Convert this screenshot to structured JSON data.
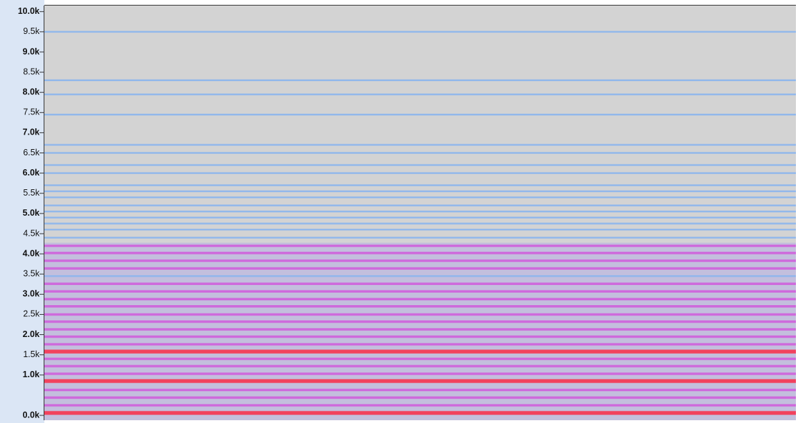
{
  "chart_data": {
    "type": "spectrogram",
    "ylim": [
      -120,
      10150
    ],
    "yticks": [
      {
        "value": 0,
        "label": "0.0k"
      },
      {
        "value": 1000,
        "label": "1.0k"
      },
      {
        "value": 1500,
        "label": "1.5k"
      },
      {
        "value": 2000,
        "label": "2.0k"
      },
      {
        "value": 2500,
        "label": "2.5k"
      },
      {
        "value": 3000,
        "label": "3.0k"
      },
      {
        "value": 3500,
        "label": "3.5k"
      },
      {
        "value": 4000,
        "label": "4.0k"
      },
      {
        "value": 4500,
        "label": "4.5k"
      },
      {
        "value": 5000,
        "label": "5.0k"
      },
      {
        "value": 5500,
        "label": "5.5k"
      },
      {
        "value": 6000,
        "label": "6.0k"
      },
      {
        "value": 6500,
        "label": "6.5k"
      },
      {
        "value": 7000,
        "label": "7.0k"
      },
      {
        "value": 7500,
        "label": "7.5k"
      },
      {
        "value": 8000,
        "label": "8.0k"
      },
      {
        "value": 8500,
        "label": "8.5k"
      },
      {
        "value": 9000,
        "label": "9.0k"
      },
      {
        "value": 9500,
        "label": "9.5k"
      },
      {
        "value": 10000,
        "label": "10.0k"
      }
    ],
    "background": "#d3d3d3",
    "bands": [
      {
        "color": "#8cb6ee",
        "freqs": [
          3450,
          4400,
          4600,
          4750,
          4900,
          5050,
          5200,
          5400,
          5550,
          5700,
          6000,
          6200,
          6500,
          6700,
          7450,
          7950,
          8300,
          9500
        ]
      },
      {
        "color": "#cf66dc",
        "freqs": [
          250,
          440,
          630,
          1030,
          1220,
          1400,
          1760,
          1950,
          2130,
          2320,
          2500,
          2700,
          2880,
          3070,
          3260,
          3640,
          3830,
          4020,
          4200
        ]
      },
      {
        "color": "#f2425e",
        "freqs": [
          60,
          850,
          1580
        ]
      }
    ]
  }
}
